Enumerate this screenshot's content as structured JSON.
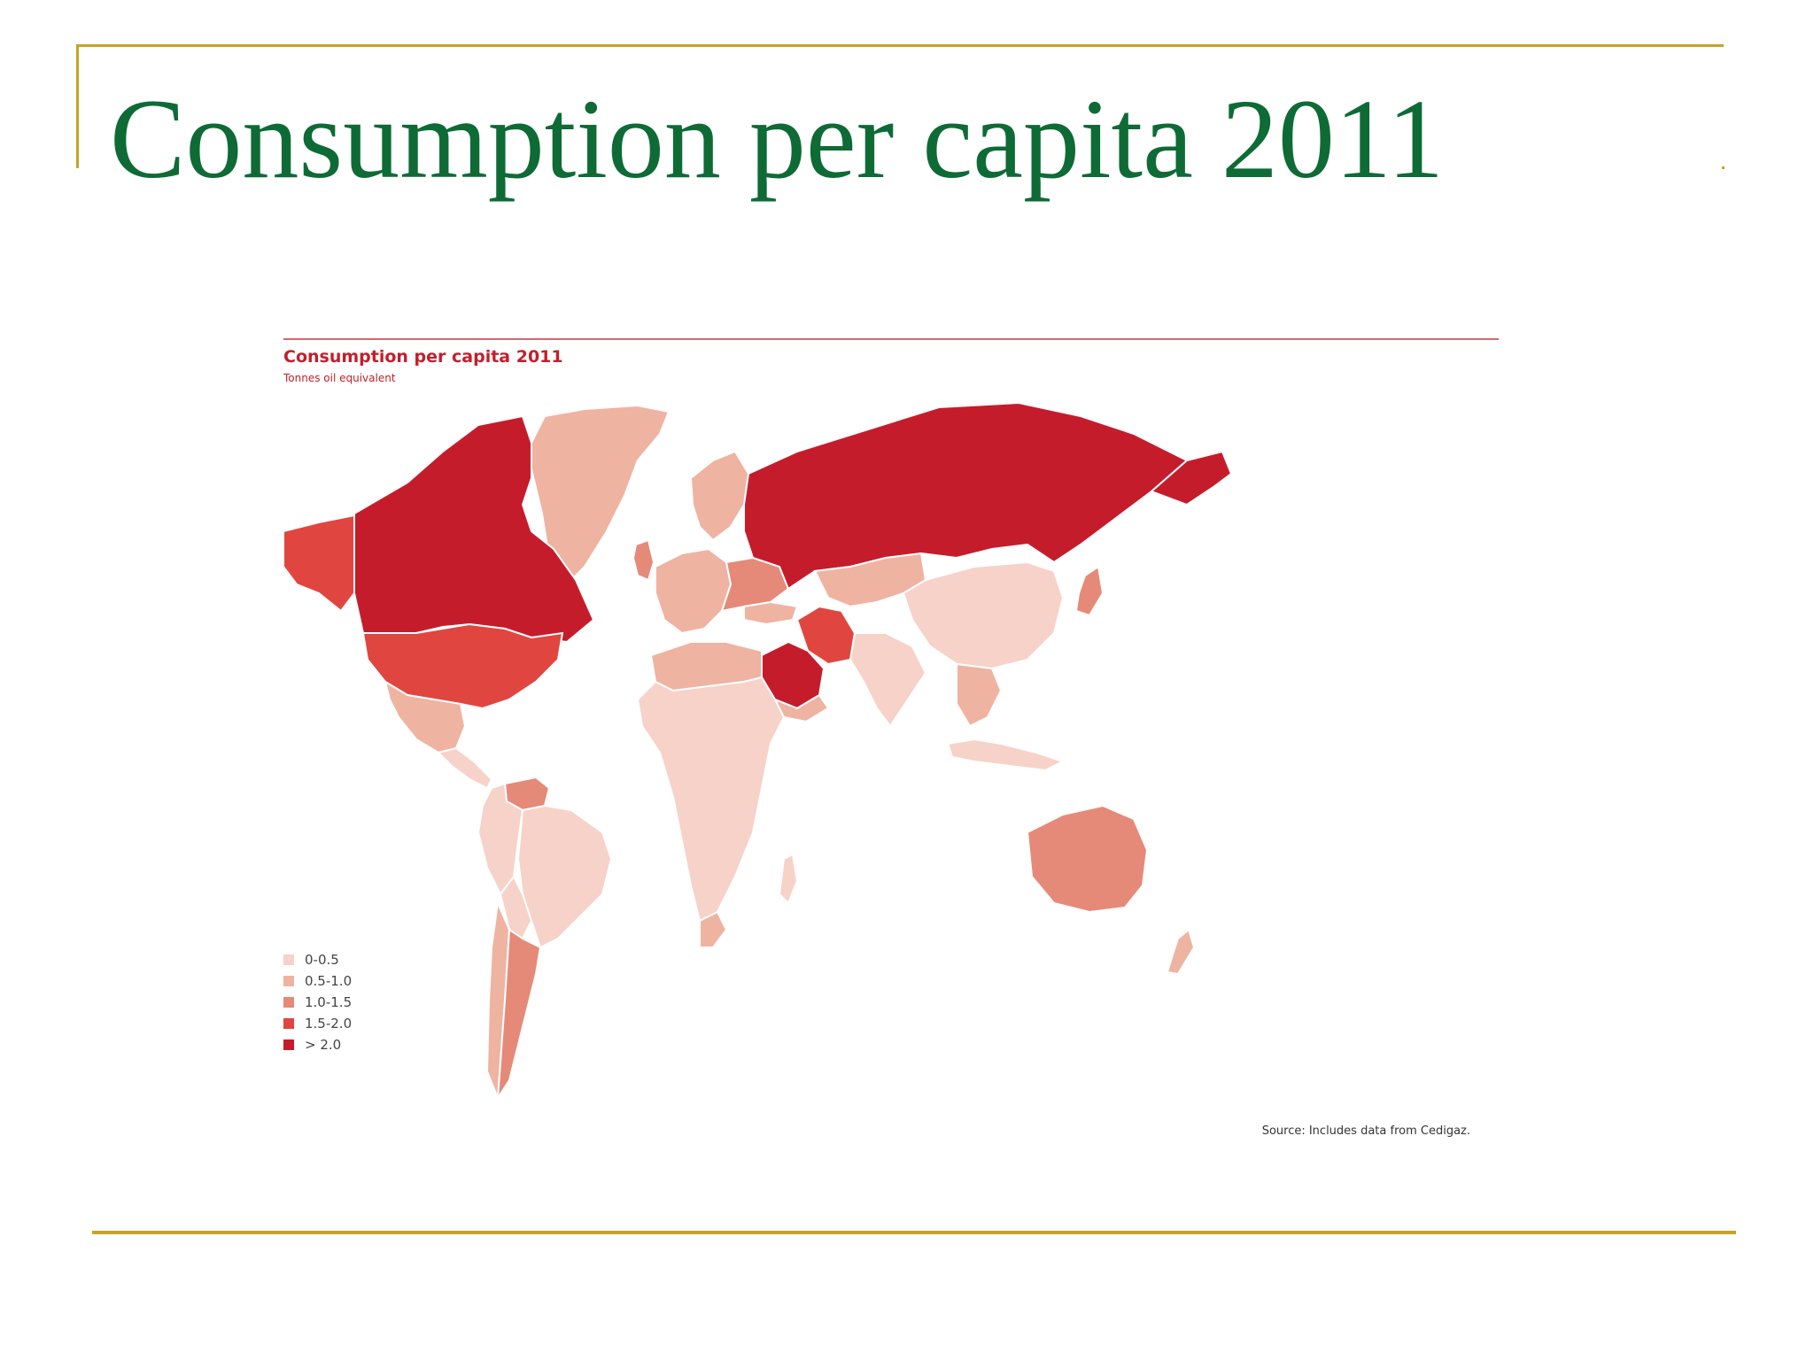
{
  "slide": {
    "title": "Consumption per capita 2011"
  },
  "figure": {
    "title": "Consumption per capita 2011",
    "subtitle": "Tonnes oil equivalent",
    "source": "Source: Includes data from Cedigaz."
  },
  "legend": [
    {
      "label": "0-0.5",
      "color": "#f7d2c8"
    },
    {
      "label": "0.5-1.0",
      "color": "#efb3a2"
    },
    {
      "label": "1.0-1.5",
      "color": "#e58a78"
    },
    {
      "label": "1.5-2.0",
      "color": "#e0463f"
    },
    {
      "label": "> 2.0",
      "color": "#c51c2c"
    }
  ],
  "colors": {
    "title_text": "#0e6b35",
    "frame": "#c9a227",
    "figure_accent": "#c21f2b"
  }
}
